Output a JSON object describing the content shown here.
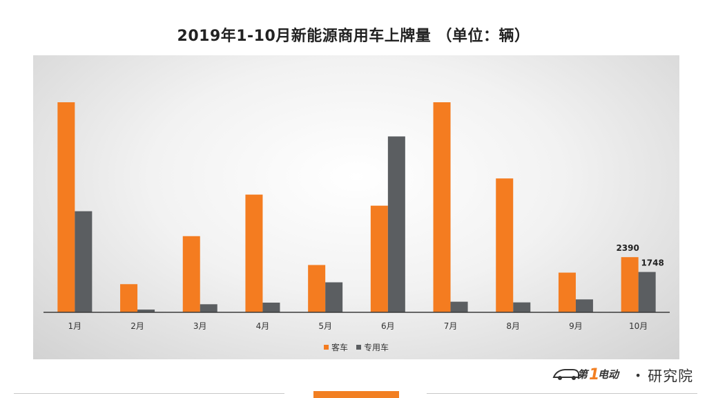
{
  "title": "2019年1-10月新能源商用车上牌量 （单位：辆）",
  "brand": {
    "logo_text": "第1电动",
    "dot": "•",
    "suffix": "研究院"
  },
  "colors": {
    "passenger": "#f47c20",
    "special": "#5b5e61",
    "accent": "#f27f22"
  },
  "chart_data": {
    "type": "bar",
    "categories": [
      "1月",
      "2月",
      "3月",
      "4月",
      "5月",
      "6月",
      "7月",
      "8月",
      "9月",
      "10月"
    ],
    "series": [
      {
        "name": "客车",
        "color": "#f47c20",
        "values": [
          9100,
          1220,
          3300,
          5100,
          2050,
          4620,
          9100,
          5800,
          1720,
          2390
        ]
      },
      {
        "name": "专用车",
        "color": "#5b5e61",
        "values": [
          4380,
          120,
          350,
          420,
          1300,
          7620,
          460,
          430,
          560,
          1748
        ]
      }
    ],
    "data_labels": [
      {
        "series": 0,
        "category": 9,
        "text": "2390"
      },
      {
        "series": 1,
        "category": 9,
        "text": "1748"
      }
    ],
    "ylim": [
      0,
      9100
    ],
    "legend_position": "bottom",
    "grid": false
  }
}
